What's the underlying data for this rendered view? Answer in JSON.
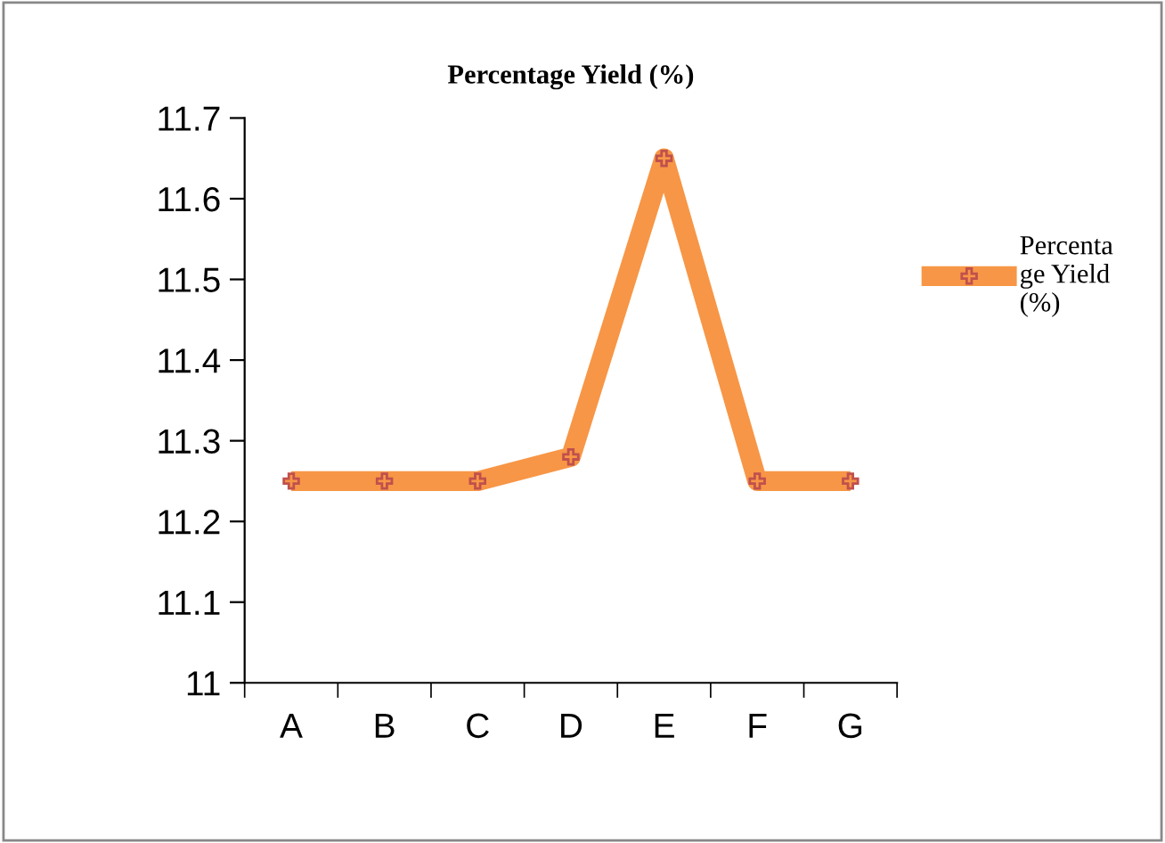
{
  "chart_data": {
    "type": "line",
    "title": "Percentage Yield (%)",
    "categories": [
      "A",
      "B",
      "C",
      "D",
      "E",
      "F",
      "G"
    ],
    "series": [
      {
        "name": "Percentage Yield (%)",
        "color": "#f79646",
        "values": [
          11.25,
          11.25,
          11.25,
          11.28,
          11.65,
          11.25,
          11.25
        ]
      }
    ],
    "ylim": [
      11,
      11.7
    ],
    "yticks": [
      11,
      11.1,
      11.2,
      11.3,
      11.4,
      11.5,
      11.6,
      11.7
    ],
    "grid": false,
    "legend": "right",
    "marker": "cross",
    "line_style": "solid"
  }
}
